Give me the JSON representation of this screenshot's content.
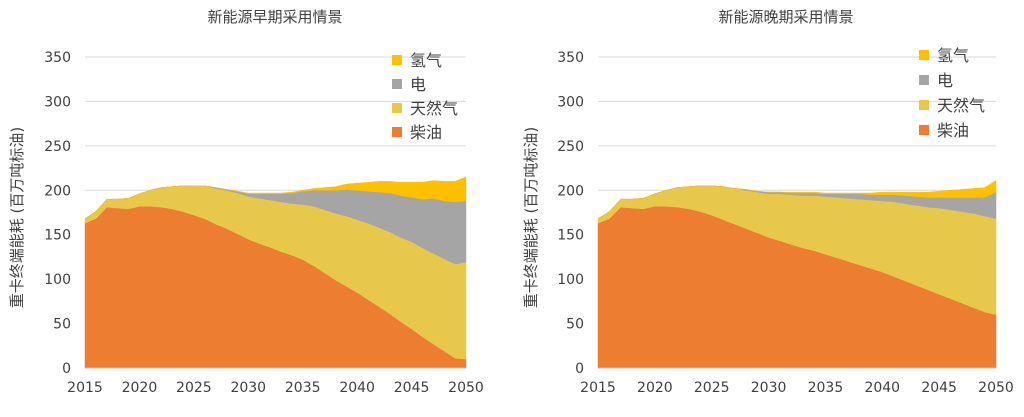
{
  "chart_data": [
    {
      "type": "area",
      "stacked": true,
      "title": "新能源早期采用情景",
      "xlabel": "",
      "ylabel": "重卡终端能耗 (百万吨标油)",
      "x": [
        2015,
        2016,
        2017,
        2018,
        2019,
        2020,
        2021,
        2022,
        2023,
        2024,
        2025,
        2026,
        2027,
        2028,
        2029,
        2030,
        2031,
        2032,
        2033,
        2034,
        2035,
        2036,
        2037,
        2038,
        2039,
        2040,
        2041,
        2042,
        2043,
        2044,
        2045,
        2046,
        2047,
        2048,
        2049,
        2050
      ],
      "xticks": [
        2015,
        2020,
        2025,
        2030,
        2035,
        2040,
        2045,
        2050
      ],
      "yticks": [
        0,
        50,
        100,
        150,
        200,
        250,
        300,
        350
      ],
      "ylim": [
        0,
        350
      ],
      "xlim": [
        2015,
        2050
      ],
      "grid": true,
      "legend_position": "top-right",
      "series": [
        {
          "name": "柴油",
          "color": "#ED7D31",
          "values": [
            163,
            168,
            181,
            180,
            179,
            182,
            182,
            181,
            179,
            176,
            172,
            168,
            162,
            157,
            151,
            145,
            140,
            136,
            131,
            127,
            122,
            115,
            107,
            99,
            92,
            85,
            77,
            69,
            61,
            52,
            44,
            35,
            27,
            19,
            11,
            10
          ]
        },
        {
          "name": "天然气",
          "color": "#E8C84A",
          "values": [
            5,
            8,
            9,
            10,
            12,
            14,
            18,
            22,
            25,
            29,
            33,
            37,
            40,
            43,
            46,
            48,
            51,
            53,
            56,
            58,
            62,
            67,
            71,
            75,
            79,
            82,
            86,
            89,
            92,
            95,
            98,
            100,
            102,
            104,
            106,
            109
          ]
        },
        {
          "name": "电",
          "color": "#A5A5A5",
          "values": [
            0,
            0,
            0,
            0,
            0,
            0,
            0,
            0,
            0,
            0,
            0,
            0,
            1,
            1,
            2,
            3,
            5,
            7,
            9,
            12,
            15,
            18,
            22,
            26,
            30,
            33,
            36,
            40,
            44,
            47,
            50,
            55,
            62,
            65,
            70,
            69
          ]
        },
        {
          "name": "氢气",
          "color": "#FFC000",
          "values": [
            0,
            0,
            0,
            0,
            0,
            0,
            0,
            0,
            0,
            0,
            0,
            0,
            0,
            0,
            0,
            1,
            1,
            1,
            1,
            1,
            1,
            2,
            3,
            4,
            6,
            8,
            10,
            12,
            13,
            15,
            17,
            19,
            20,
            22,
            23,
            27
          ]
        }
      ]
    },
    {
      "type": "area",
      "stacked": true,
      "title": "新能源晚期采用情景",
      "xlabel": "",
      "ylabel": "重卡终端能耗 (百万吨标油)",
      "x": [
        2015,
        2016,
        2017,
        2018,
        2019,
        2020,
        2021,
        2022,
        2023,
        2024,
        2025,
        2026,
        2027,
        2028,
        2029,
        2030,
        2031,
        2032,
        2033,
        2034,
        2035,
        2036,
        2037,
        2038,
        2039,
        2040,
        2041,
        2042,
        2043,
        2044,
        2045,
        2046,
        2047,
        2048,
        2049,
        2050
      ],
      "xticks": [
        2015,
        2020,
        2025,
        2030,
        2035,
        2040,
        2045,
        2050
      ],
      "yticks": [
        0,
        50,
        100,
        150,
        200,
        250,
        300,
        350
      ],
      "ylim": [
        0,
        350
      ],
      "xlim": [
        2015,
        2050
      ],
      "grid": true,
      "legend_position": "top-right",
      "series": [
        {
          "name": "柴油",
          "color": "#ED7D31",
          "values": [
            163,
            168,
            181,
            180,
            179,
            182,
            182,
            181,
            179,
            176,
            172,
            167,
            162,
            157,
            152,
            147,
            143,
            139,
            135,
            132,
            128,
            124,
            120,
            116,
            112,
            108,
            103,
            98,
            93,
            88,
            83,
            78,
            73,
            68,
            63,
            60
          ]
        },
        {
          "name": "天然气",
          "color": "#E8C84A",
          "values": [
            5,
            8,
            9,
            10,
            12,
            14,
            18,
            22,
            25,
            29,
            33,
            37,
            40,
            43,
            46,
            49,
            53,
            56,
            59,
            62,
            65,
            68,
            71,
            74,
            77,
            80,
            84,
            87,
            90,
            93,
            97,
            100,
            103,
            106,
            108,
            108
          ]
        },
        {
          "name": "电",
          "color": "#A5A5A5",
          "values": [
            0,
            0,
            0,
            0,
            0,
            0,
            0,
            0,
            0,
            0,
            0,
            0,
            0,
            1,
            1,
            2,
            2,
            2,
            3,
            3,
            3,
            4,
            5,
            6,
            6,
            7,
            8,
            9,
            10,
            11,
            12,
            14,
            16,
            18,
            21,
            30
          ]
        },
        {
          "name": "氢气",
          "color": "#FFC000",
          "values": [
            0,
            0,
            0,
            0,
            0,
            0,
            0,
            0,
            0,
            0,
            0,
            0,
            0,
            0,
            0,
            0,
            0,
            1,
            1,
            1,
            1,
            1,
            1,
            1,
            2,
            3,
            3,
            4,
            5,
            6,
            7,
            8,
            9,
            10,
            11,
            13
          ]
        }
      ]
    }
  ]
}
